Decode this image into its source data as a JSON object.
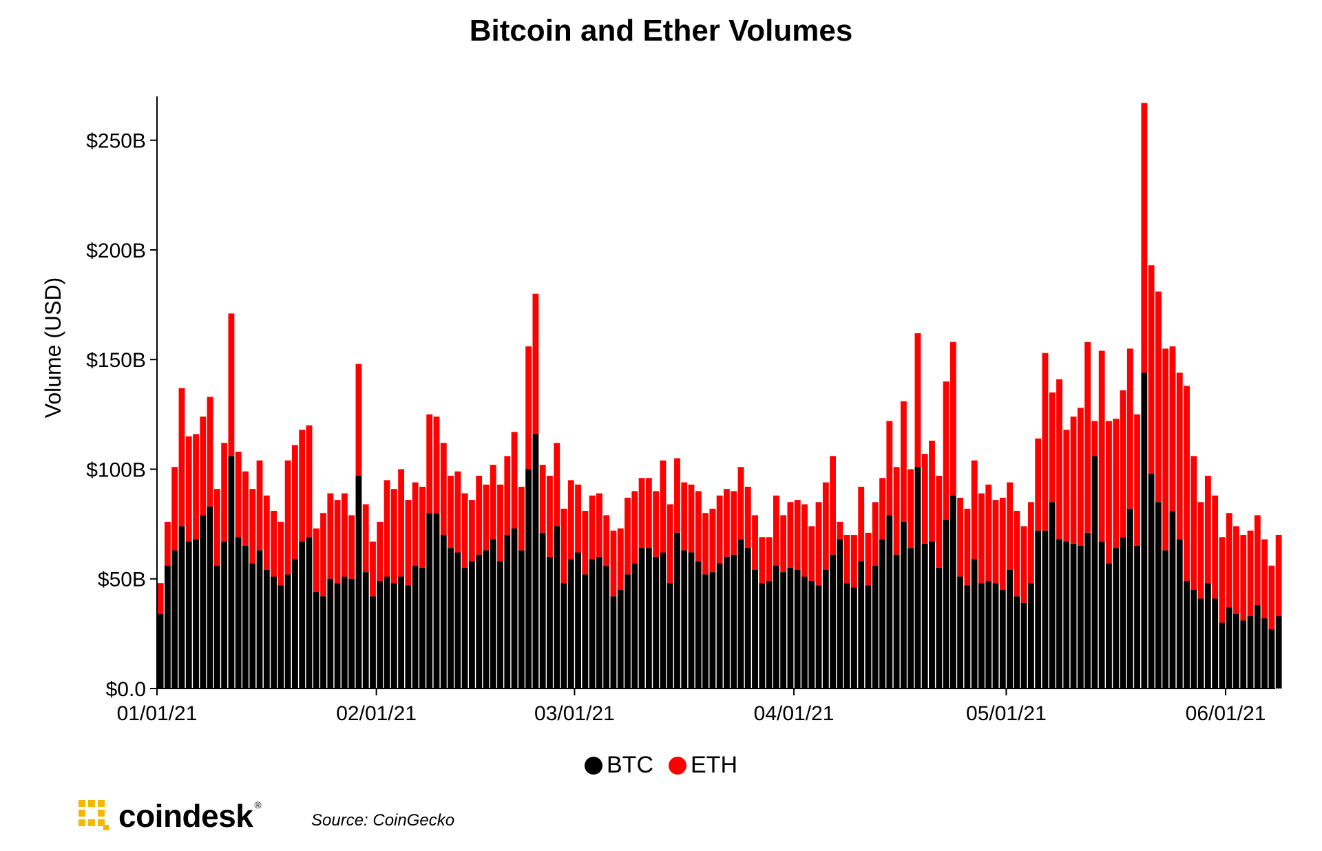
{
  "chart_data": {
    "type": "bar",
    "stacked": true,
    "title": "Bitcoin and Ether Volumes",
    "ylabel": "Volume (USD)",
    "xlabel": "",
    "ylim": [
      0,
      270
    ],
    "y_unit": "billions USD",
    "y_ticks": [
      {
        "value": 0,
        "label": "$0.0"
      },
      {
        "value": 50,
        "label": "$50B"
      },
      {
        "value": 100,
        "label": "$100B"
      },
      {
        "value": 150,
        "label": "$150B"
      },
      {
        "value": 200,
        "label": "$200B"
      },
      {
        "value": 250,
        "label": "$250B"
      }
    ],
    "x_ticks": [
      {
        "date": "2021-01-01",
        "label": "01/01/21"
      },
      {
        "date": "2021-02-01",
        "label": "02/01/21"
      },
      {
        "date": "2021-03-01",
        "label": "03/01/21"
      },
      {
        "date": "2021-04-01",
        "label": "04/01/21"
      },
      {
        "date": "2021-05-01",
        "label": "05/01/21"
      },
      {
        "date": "2021-06-01",
        "label": "06/01/21"
      }
    ],
    "x_start": "2021-01-01",
    "x_end": "2021-06-07",
    "legend_position": "bottom-center",
    "grid": false,
    "series": [
      {
        "name": "BTC",
        "color": "#000000",
        "values": [
          34,
          56,
          63,
          74,
          67,
          68,
          79,
          83,
          56,
          67,
          106,
          69,
          65,
          57,
          63,
          54,
          51,
          47,
          52,
          59,
          67,
          69,
          44,
          42,
          50,
          48,
          51,
          50,
          97,
          53,
          42,
          49,
          51,
          48,
          51,
          47,
          56,
          55,
          80,
          80,
          70,
          64,
          62,
          55,
          58,
          61,
          63,
          68,
          58,
          70,
          73,
          63,
          100,
          116,
          71,
          60,
          74,
          48,
          59,
          62,
          52,
          59,
          60,
          56,
          42,
          45,
          52,
          57,
          64,
          64,
          60,
          62,
          48,
          71,
          63,
          62,
          58,
          52,
          53,
          57,
          60,
          61,
          68,
          64,
          54,
          48,
          49,
          56,
          53,
          55,
          54,
          51,
          49,
          47,
          54,
          61,
          68,
          48,
          46,
          58,
          47,
          56,
          68,
          79,
          61,
          76,
          64,
          101,
          66,
          67,
          55,
          77,
          88,
          51,
          47,
          59,
          48,
          49,
          48,
          45,
          54,
          42,
          39,
          48,
          72,
          72,
          85,
          68,
          67,
          66,
          65,
          71,
          106,
          67,
          57,
          64,
          69,
          82,
          65,
          144,
          98,
          85,
          63,
          81,
          68,
          49,
          45,
          41,
          48,
          41,
          30,
          37,
          34,
          31,
          33,
          38,
          32,
          27,
          33
        ],
        "totals": [
          48,
          76,
          101,
          137,
          115,
          116,
          124,
          133,
          91,
          112,
          171,
          108,
          99,
          91,
          104,
          88,
          81,
          76,
          104,
          111,
          118,
          120,
          73,
          80,
          89,
          86,
          89,
          79,
          148,
          84,
          67,
          76,
          95,
          91,
          100,
          86,
          94,
          92,
          125,
          124,
          112,
          97,
          99,
          89,
          86,
          97,
          93,
          102,
          93,
          106,
          117,
          92,
          156,
          180,
          102,
          97,
          112,
          82,
          95,
          93,
          81,
          88,
          89,
          79,
          72,
          73,
          87,
          90,
          96,
          96,
          90,
          104,
          84,
          105,
          94,
          93,
          90,
          80,
          82,
          88,
          91,
          90,
          101,
          92,
          79,
          69,
          69,
          88,
          79,
          85,
          86,
          84,
          74,
          85,
          94,
          106,
          76,
          70,
          70,
          92,
          71,
          85,
          96,
          122,
          101,
          131,
          100,
          162,
          107,
          113,
          97,
          140,
          158,
          87,
          82,
          104,
          89,
          93,
          86,
          87,
          94,
          81,
          74,
          85,
          114,
          153,
          135,
          141,
          118,
          124,
          128,
          158,
          122,
          154,
          122,
          123,
          136,
          155,
          125,
          267,
          193,
          181,
          155,
          156,
          144,
          138,
          106,
          85,
          97,
          88,
          69,
          80,
          74,
          70,
          72,
          79,
          68,
          56,
          70
        ]
      },
      {
        "name": "ETH",
        "color": "#ff0000"
      }
    ]
  },
  "legend": {
    "btc_label": "BTC",
    "eth_label": "ETH"
  },
  "footer": {
    "brand": "coindesk",
    "source": "Source: CoinGecko"
  }
}
